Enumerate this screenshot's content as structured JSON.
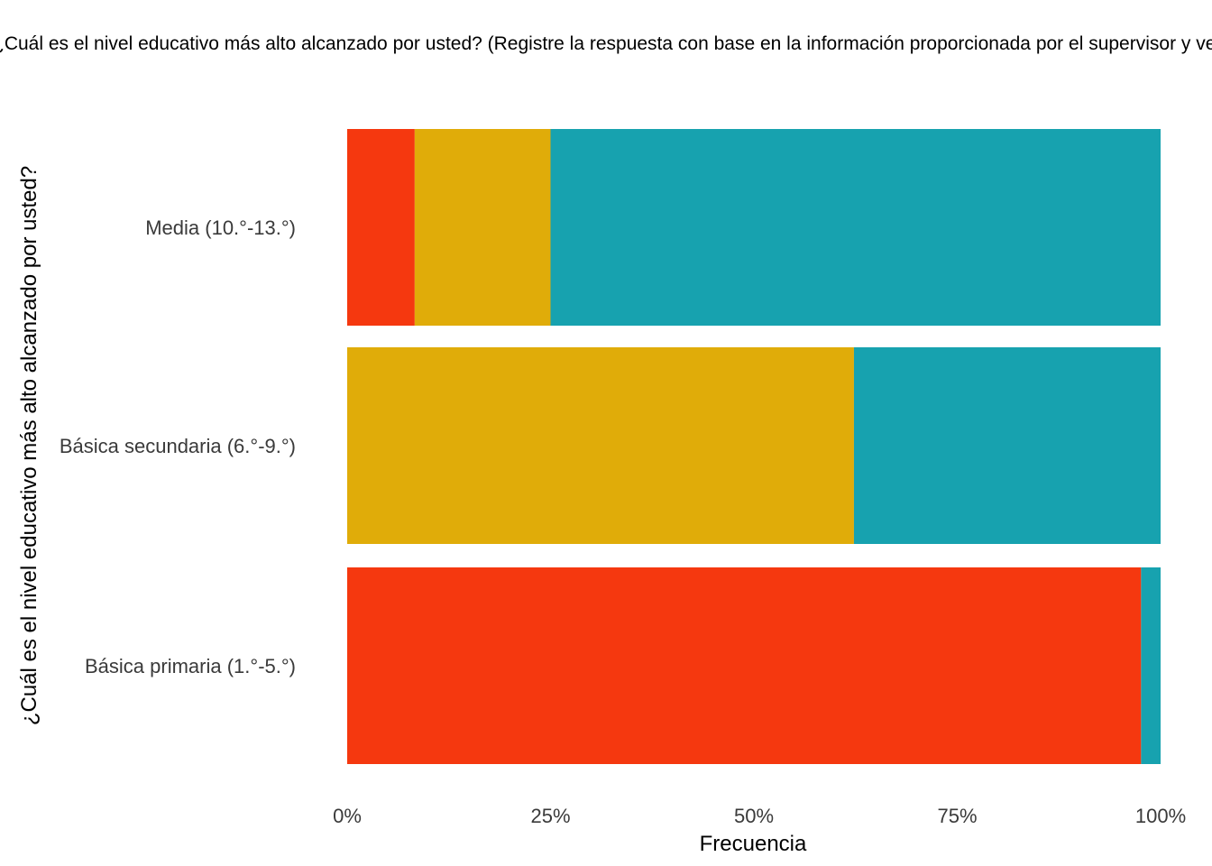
{
  "chart_data": {
    "type": "bar",
    "orientation": "horizontal",
    "stacked": true,
    "title": "¿Cuál es el nivel educativo más alto alcanzado por usted? (Registre la respuesta con base en la información proporcionada por el supervisor y verifique la persona efectivamente conoce",
    "xlabel": "Frecuencia",
    "ylabel": "¿Cuál es el nivel educativo más alto alcanzado por usted?",
    "xlim": [
      0,
      1
    ],
    "x_ticks": [
      0,
      0.25,
      0.5,
      0.75,
      1
    ],
    "x_tick_labels": [
      "0%",
      "25%",
      "50%",
      "75%",
      "100%"
    ],
    "categories": [
      "Media (10.°-13.°)",
      "Básica secundaria (6.°-9.°)",
      "Básica primaria (1.°-5.°)"
    ],
    "series": [
      {
        "color": "#F5380F",
        "values": [
          0.083,
          0.0,
          0.976
        ]
      },
      {
        "color": "#E0AC09",
        "values": [
          0.167,
          0.623,
          0.0
        ]
      },
      {
        "color": "#17A2AF",
        "values": [
          0.75,
          0.377,
          0.024
        ]
      }
    ],
    "grid": false,
    "legend": "none"
  }
}
